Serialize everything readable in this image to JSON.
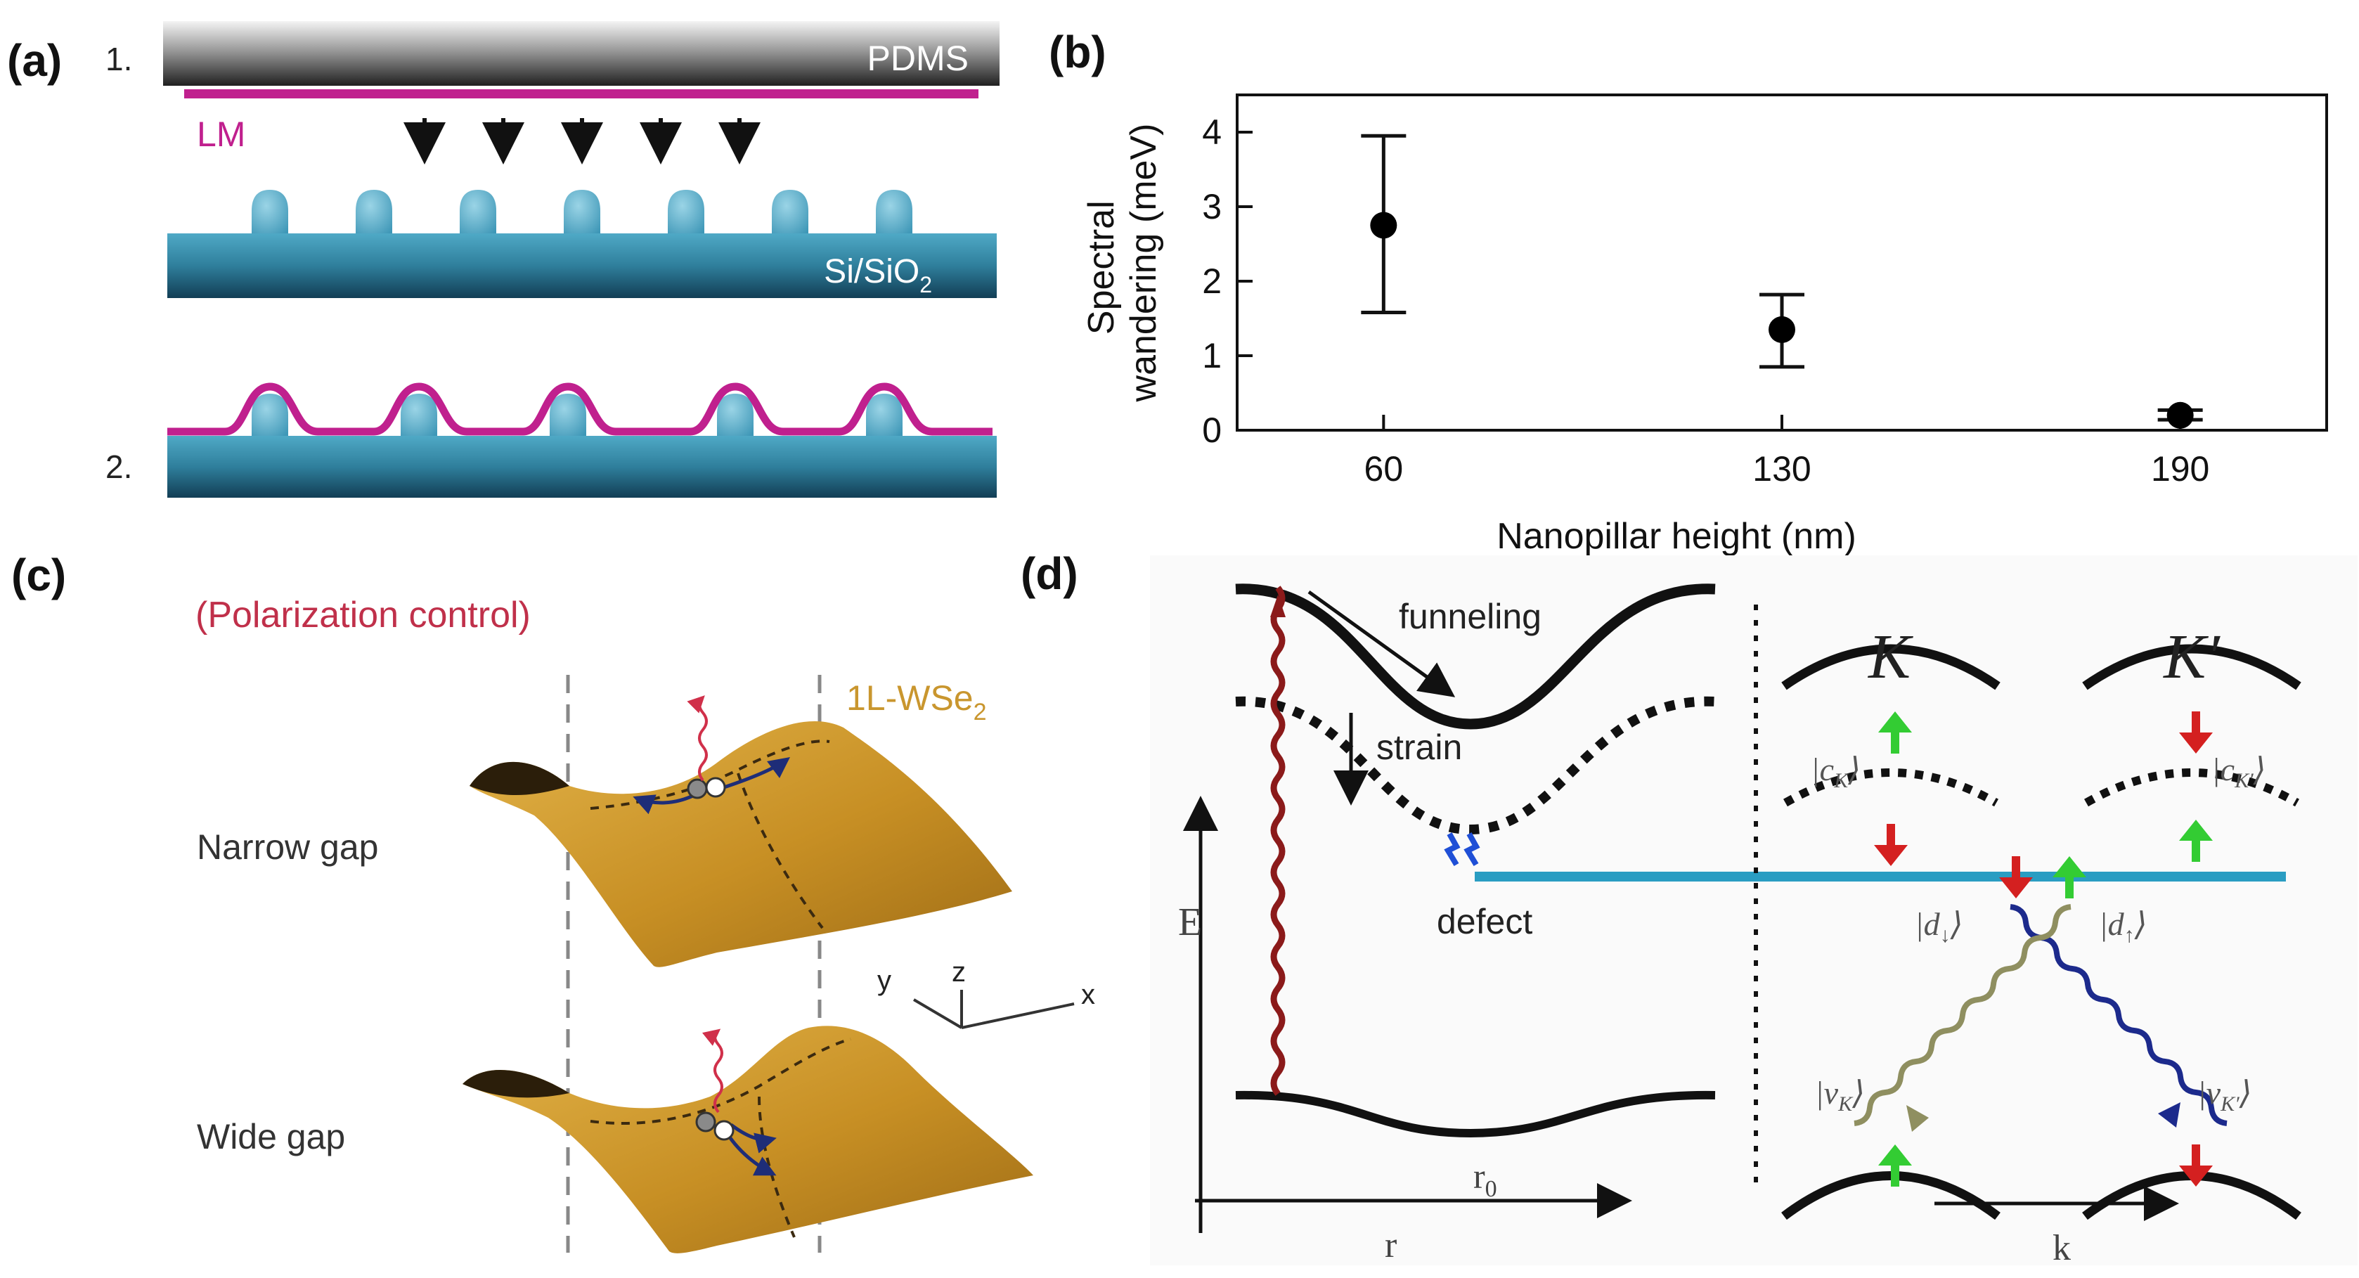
{
  "panel_a": {
    "label": "(a)",
    "step1": "1.",
    "step2": "2.",
    "pdms": "PDMS",
    "lm": "LM",
    "substrate": "Si/SiO",
    "substrate_sub": "2",
    "colors": {
      "lm": "#c0208e",
      "substrate": "#2f8aa8",
      "pillar": "#5fb6cf"
    }
  },
  "panel_b": {
    "label": "(b)",
    "chart_data": {
      "type": "scatter",
      "title": "",
      "xlabel": "Nanopillar height (nm)",
      "ylabel_line1": "Spectral",
      "ylabel_line2": "wandering (meV)",
      "categories": [
        "60",
        "130",
        "190"
      ],
      "x": [
        60,
        130,
        190
      ],
      "y": [
        2.75,
        1.35,
        0.2
      ],
      "y_err_low": [
        1.58,
        0.85,
        0.14
      ],
      "y_err_high": [
        3.95,
        1.82,
        0.27
      ],
      "yticks": [
        "0",
        "1",
        "2",
        "3",
        "4"
      ],
      "ylim": [
        0,
        4.5
      ]
    }
  },
  "panel_c": {
    "label": "(c)",
    "polarization": "(Polarization control)",
    "material": "1L-WSe",
    "material_sub": "2",
    "narrow": "Narrow gap",
    "wide": "Wide gap",
    "axis_y": "y",
    "axis_z": "z",
    "axis_x": "x",
    "colors": {
      "surface": "#c9962e",
      "polarization": "#c0304a"
    }
  },
  "panel_d": {
    "label": "(d)",
    "funneling": "funneling",
    "strain": "strain",
    "defect": "defect",
    "energy": "E",
    "r0": "r",
    "r0_sub": "0",
    "r": "r",
    "k": "k",
    "K": "K",
    "Kp": "K′",
    "cK": "|c",
    "cK_sub": "K",
    "cKp": "|c",
    "cKp_sub": "K′",
    "d_down": "|d",
    "d_down_sub": "↓",
    "d_up": "|d",
    "d_up_sub": "↑",
    "vK": "|v",
    "vK_sub": "K",
    "vKp": "|v",
    "vKp_sub": "K′",
    "ket": "⟩",
    "colors": {
      "defect_line": "#2a9dc2",
      "spin_up": "#33cc33",
      "spin_down": "#d42020"
    }
  }
}
